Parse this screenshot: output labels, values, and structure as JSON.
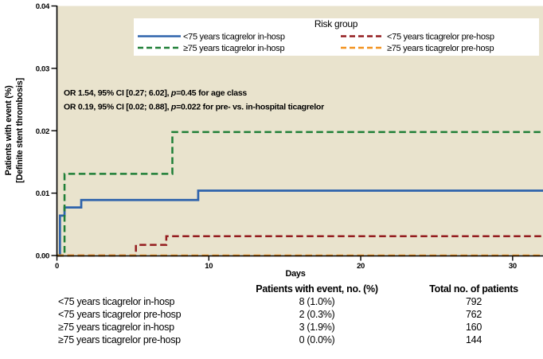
{
  "figure": {
    "y_axis": {
      "title_line1": "Patients with event (%)",
      "title_line2": "[Definite stent thrombosis]",
      "tick_labels": [
        "0.00",
        "0.01",
        "0.02",
        "0.03",
        "0.04"
      ]
    },
    "x_axis": {
      "title": "Days",
      "tick_labels": [
        "0",
        "10",
        "20",
        "30"
      ]
    },
    "legend": {
      "title": "Risk group",
      "entries": [
        {
          "label": "<75 years ticagrelor in-hosp",
          "color": "#2e63ac",
          "dash": "solid"
        },
        {
          "label": "<75 years ticagrelor pre-hosp",
          "color": "#941c1e",
          "dash": "dashed"
        },
        {
          "label": "≥75 years ticagrelor in-hosp",
          "color": "#1f7f37",
          "dash": "dashed"
        },
        {
          "label": "≥75 years ticagrelor pre-hosp",
          "color": "#f2921e",
          "dash": "dashed"
        }
      ]
    },
    "annotations": {
      "line1": {
        "pre": "OR 1.54, 95% CI [0.27; 6.02], ",
        "p": "p",
        "post": "=0.45 for age class"
      },
      "line2": {
        "pre": "OR 0.19, 95% CI [0.02; 0.88], ",
        "p": "p",
        "post": "=0.022 for pre- vs. in-hospital ticagrelor"
      }
    },
    "colors": {
      "plot_background": "#e9e3cd",
      "axis": "#000000",
      "legend_background": "#ffffff"
    }
  },
  "chart_data": {
    "type": "line",
    "subtype": "step-after",
    "title": "",
    "xlabel": "Days",
    "ylabel": "Patients with event (%) [Definite stent thrombosis]",
    "xlim": [
      0,
      32
    ],
    "ylim": [
      0,
      0.04
    ],
    "x_ticks": [
      0,
      10,
      20,
      30
    ],
    "y_ticks": [
      0,
      0.01,
      0.02,
      0.03,
      0.04
    ],
    "grid": false,
    "legend_position": "top-inside",
    "series": [
      {
        "name": "<75 years ticagrelor in-hosp",
        "color": "#2e63ac",
        "dash": "solid",
        "points": [
          [
            0,
            0
          ],
          [
            0.2,
            0.0064
          ],
          [
            0.5,
            0.0077
          ],
          [
            1.6,
            0.0089
          ],
          [
            9.3,
            0.0104
          ],
          [
            32,
            0.0104
          ]
        ]
      },
      {
        "name": "<75 years ticagrelor pre-hosp",
        "color": "#941c1e",
        "dash": "dashed",
        "points": [
          [
            0,
            0
          ],
          [
            5.2,
            0.0017
          ],
          [
            7.2,
            0.0031
          ],
          [
            32,
            0.0031
          ]
        ]
      },
      {
        "name": "≥75 years ticagrelor in-hosp",
        "color": "#1f7f37",
        "dash": "dashed",
        "points": [
          [
            0,
            0
          ],
          [
            0.5,
            0.0131
          ],
          [
            7.6,
            0.0198
          ],
          [
            32,
            0.0198
          ]
        ]
      },
      {
        "name": "≥75 years ticagrelor pre-hosp",
        "color": "#f2921e",
        "dash": "dashed",
        "points": [
          [
            0,
            0
          ],
          [
            32,
            0
          ]
        ]
      }
    ]
  },
  "summary_table": {
    "headers": {
      "event": "Patients with event, no. (%)",
      "total": "Total no. of patients"
    },
    "rows": [
      {
        "label": "<75 years ticagrelor in-hosp",
        "event": "8 (1.0%)",
        "total": "792"
      },
      {
        "label": "<75 years ticagrelor pre-hosp",
        "event": "2 (0.3%)",
        "total": "762"
      },
      {
        "label": "≥75 years ticagrelor in-hosp",
        "event": "3 (1.9%)",
        "total": "160"
      },
      {
        "label": "≥75 years ticagrelor pre-hosp",
        "event": "0 (0.0%)",
        "total": "144"
      }
    ]
  }
}
